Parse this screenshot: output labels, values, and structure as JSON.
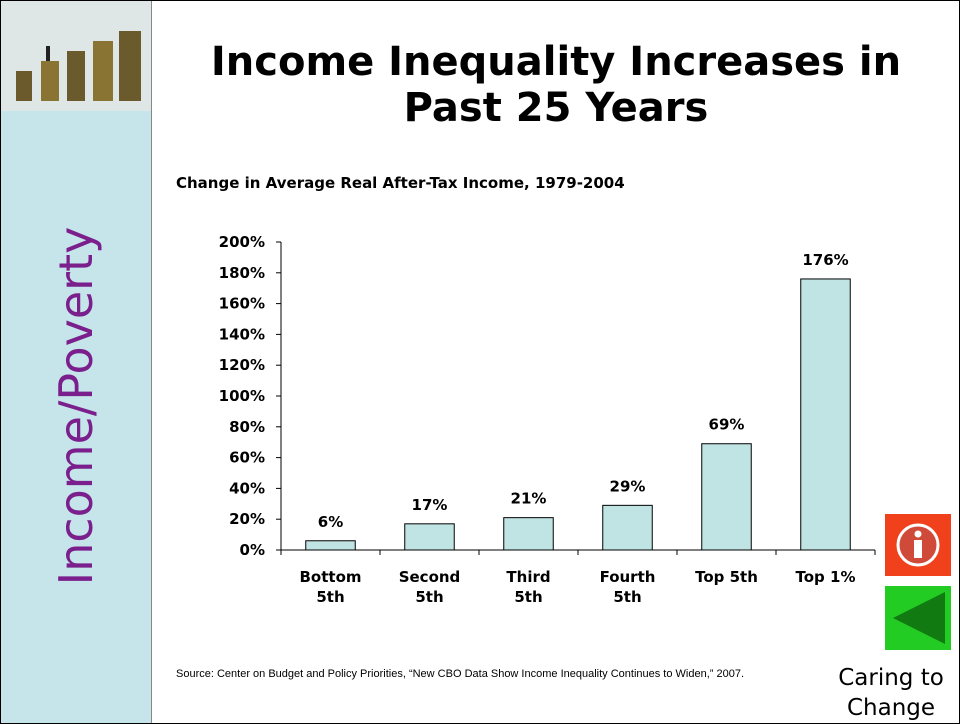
{
  "sidebar_label": "Income/Poverty",
  "slide_title": "Income Inequality Increases in Past 25 Years",
  "source": "Source: Center on Budget and Policy Priorities, “New CBO Data Show Income Inequality Continues to Widen,” 2007.",
  "footer_label": "Caring to Change",
  "chart_data": {
    "type": "bar",
    "title": "Change in Average Real After-Tax Income, 1979-2004",
    "categories": [
      "Bottom\n5th",
      "Second\n5th",
      "Third\n5th",
      "Fourth\n5th",
      "Top 5th",
      "Top 1%"
    ],
    "values": [
      6,
      17,
      21,
      29,
      69,
      176
    ],
    "value_labels": [
      "6%",
      "17%",
      "21%",
      "29%",
      "69%",
      "176%"
    ],
    "color": "#c0e4e4",
    "ylim": [
      0,
      200
    ],
    "yticks": [
      {
        "value": 0,
        "label": "0%"
      },
      {
        "value": 20,
        "label": "20%"
      },
      {
        "value": 40,
        "label": "40%"
      },
      {
        "value": 60,
        "label": "60%"
      },
      {
        "value": 80,
        "label": "80%"
      },
      {
        "value": 100,
        "label": "100%"
      },
      {
        "value": 120,
        "label": "120%"
      },
      {
        "value": 140,
        "label": "140%"
      },
      {
        "value": 160,
        "label": "160%"
      },
      {
        "value": 180,
        "label": "180%"
      },
      {
        "value": 200,
        "label": "200%"
      }
    ]
  }
}
